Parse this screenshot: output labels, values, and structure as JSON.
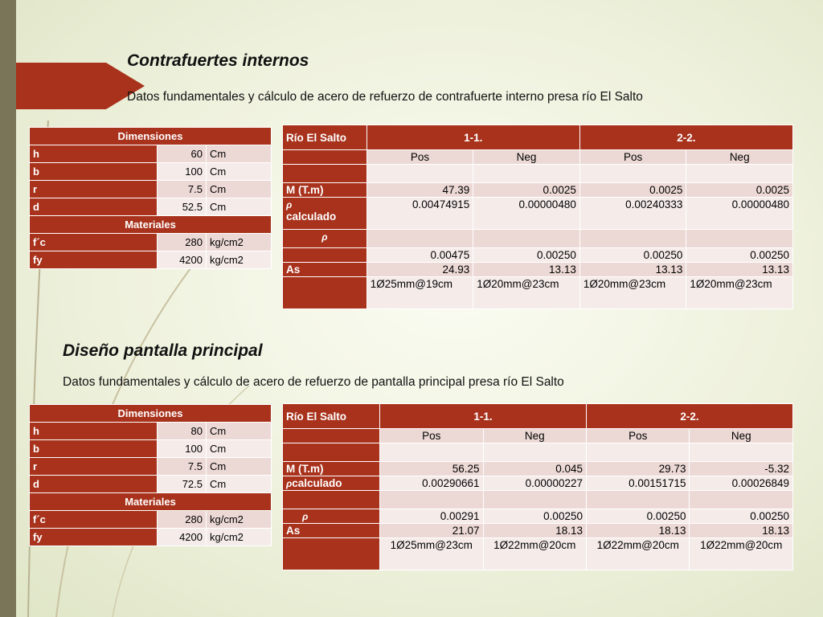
{
  "colors": {
    "accent": "#a8321c",
    "cell": "#ecd9d5",
    "cell_alt": "#f5ecea",
    "strip": "#7a7458"
  },
  "section1": {
    "title": "Contrafuertes internos",
    "subtitle": "Datos fundamentales y cálculo de acero de refuerzo de contrafuerte interno presa río El Salto",
    "dims": {
      "header": "Dimensiones",
      "rows": [
        {
          "label": "h",
          "value": "60",
          "unit": "Cm"
        },
        {
          "label": "b",
          "value": "100",
          "unit": "Cm"
        },
        {
          "label": "r",
          "value": "7.5",
          "unit": "Cm"
        },
        {
          "label": "d",
          "value": "52.5",
          "unit": "Cm"
        }
      ],
      "materials_header": "Materiales",
      "materials": [
        {
          "label": "f´c",
          "value": "280",
          "unit": "kg/cm2"
        },
        {
          "label": "fy",
          "value": "4200",
          "unit": "kg/cm2"
        }
      ]
    },
    "results": {
      "h0": "Río El Salto",
      "h1": "1-1.",
      "h2": "2-2.",
      "sub": [
        "Pos",
        "Neg",
        "Pos",
        "Neg"
      ],
      "m_label": "M (T.m)",
      "m": [
        "47.39",
        "0.0025",
        "0.0025",
        "0.0025"
      ],
      "rho_symbol": "ρ",
      "calc_label": "calculado",
      "calc": [
        "0.00474915",
        "0.00000480",
        "0.00240333",
        "0.00000480"
      ],
      "rho_vals": [
        "0.00475",
        "0.00250",
        "0.00250",
        "0.00250"
      ],
      "as_label": "As",
      "as": [
        "24.93",
        "13.13",
        "13.13",
        "13.13"
      ],
      "bars": [
        "1Ø25mm@19cm",
        "1Ø20mm@23cm",
        "1Ø20mm@23cm",
        "1Ø20mm@23cm"
      ]
    }
  },
  "section2": {
    "title": "Diseño pantalla principal",
    "subtitle": "Datos fundamentales y cálculo de acero de refuerzo de pantalla principal presa río El Salto",
    "dims": {
      "header": "Dimensiones",
      "rows": [
        {
          "label": "h",
          "value": "80",
          "unit": "Cm"
        },
        {
          "label": "b",
          "value": "100",
          "unit": "Cm"
        },
        {
          "label": "r",
          "value": "7.5",
          "unit": "Cm"
        },
        {
          "label": "d",
          "value": "72.5",
          "unit": "Cm"
        }
      ],
      "materials_header": "Materiales",
      "materials": [
        {
          "label": "f´c",
          "value": "280",
          "unit": "kg/cm2"
        },
        {
          "label": "fy",
          "value": "4200",
          "unit": "kg/cm2"
        }
      ]
    },
    "results": {
      "h0": "Río El Salto",
      "h1": "1-1.",
      "h2": "2-2.",
      "sub": [
        "Pos",
        "Neg",
        "Pos",
        "Neg"
      ],
      "m_label": "M (T.m)",
      "m": [
        "56.25",
        "0.045",
        "29.73",
        "-5.32"
      ],
      "rho_symbol": "ρ",
      "calc_label": "calculado",
      "calc": [
        "0.00290661",
        "0.00000227",
        "0.00151715",
        "0.00026849"
      ],
      "rho_vals": [
        "0.00291",
        "0.00250",
        "0.00250",
        "0.00250"
      ],
      "as_label": "As",
      "as": [
        "21.07",
        "18.13",
        "18.13",
        "18.13"
      ],
      "bars": [
        "1Ø25mm@23cm",
        "1Ø22mm@20cm",
        "1Ø22mm@20cm",
        "1Ø22mm@20cm"
      ]
    }
  }
}
